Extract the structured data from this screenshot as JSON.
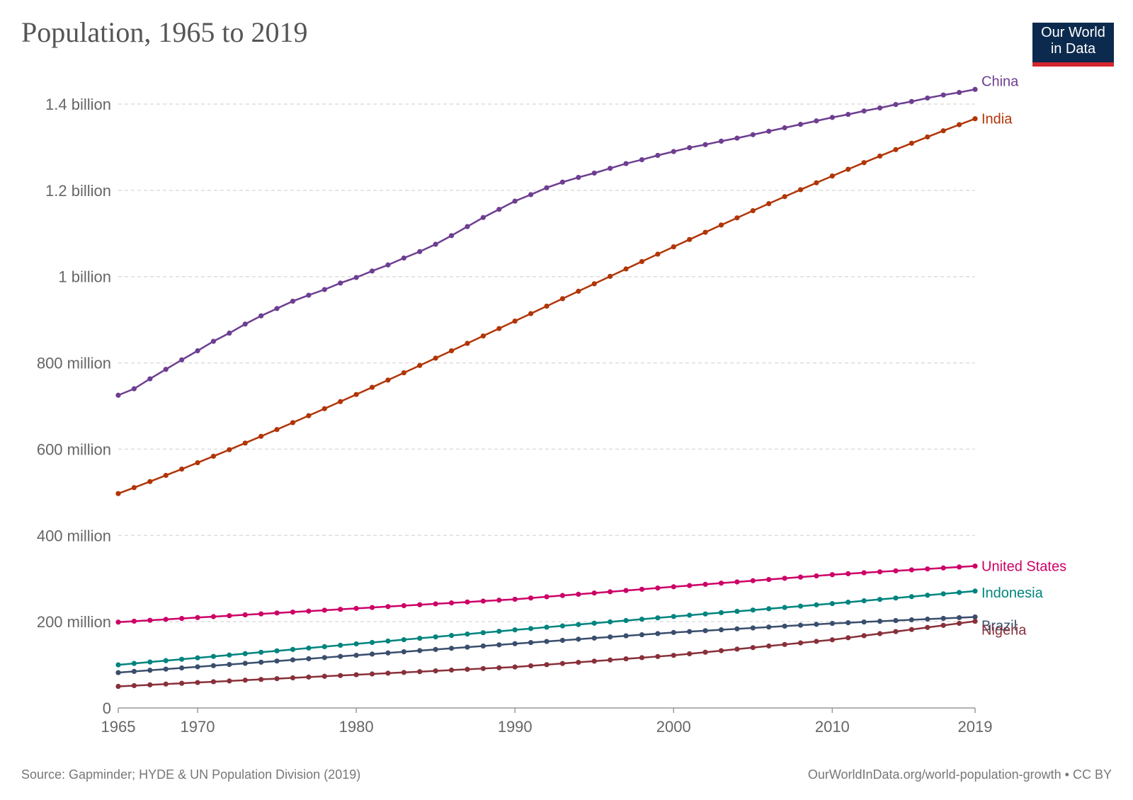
{
  "header": {
    "title": "Population, 1965 to 2019",
    "logo_line1": "Our World",
    "logo_line2": "in Data"
  },
  "footer": {
    "source": "Source: Gapminder; HYDE & UN Population Division (2019)",
    "credit": "OurWorldInData.org/world-population-growth • CC BY"
  },
  "colors": {
    "China": "#6d3e91",
    "India": "#b13507",
    "United States": "#cc0066",
    "Indonesia": "#00847e",
    "Brazil": "#3a4e6c",
    "Nigeria": "#883039",
    "grid": "#dddddd",
    "axis": "#666666"
  },
  "chart_data": {
    "type": "line",
    "title": "Population, 1965 to 2019",
    "xlabel": "",
    "ylabel": "",
    "xlim": [
      1965,
      2019
    ],
    "ylim": [
      0,
      1400000000
    ],
    "x_ticks": [
      {
        "value": 1965,
        "label": "1965"
      },
      {
        "value": 1970,
        "label": "1970"
      },
      {
        "value": 1980,
        "label": "1980"
      },
      {
        "value": 1990,
        "label": "1990"
      },
      {
        "value": 2000,
        "label": "2000"
      },
      {
        "value": 2010,
        "label": "2010"
      },
      {
        "value": 2019,
        "label": "2019"
      }
    ],
    "y_ticks": [
      {
        "value": 0,
        "label": "0"
      },
      {
        "value": 200000000,
        "label": "200 million"
      },
      {
        "value": 400000000,
        "label": "400 million"
      },
      {
        "value": 600000000,
        "label": "600 million"
      },
      {
        "value": 800000000,
        "label": "800 million"
      },
      {
        "value": 1000000000,
        "label": "1 billion"
      },
      {
        "value": 1200000000,
        "label": "1.2 billion"
      },
      {
        "value": 1400000000,
        "label": "1.4 billion"
      }
    ],
    "grid": true,
    "legend": "line-end labels",
    "anchors": {
      "China": [
        [
          1965,
          725000000
        ],
        [
          1966,
          740000000
        ],
        [
          1967,
          763000000
        ],
        [
          1968,
          785000000
        ],
        [
          1969,
          807000000
        ],
        [
          1970,
          828000000
        ],
        [
          1971,
          850000000
        ],
        [
          1972,
          869000000
        ],
        [
          1973,
          890000000
        ],
        [
          1974,
          909000000
        ],
        [
          1975,
          926000000
        ],
        [
          1976,
          943000000
        ],
        [
          1977,
          957000000
        ],
        [
          1978,
          970000000
        ],
        [
          1979,
          985000000
        ],
        [
          1980,
          998000000
        ],
        [
          1981,
          1013000000
        ],
        [
          1982,
          1027000000
        ],
        [
          1983,
          1043000000
        ],
        [
          1984,
          1058000000
        ],
        [
          1985,
          1075000000
        ],
        [
          1986,
          1095000000
        ],
        [
          1987,
          1116000000
        ],
        [
          1988,
          1137000000
        ],
        [
          1989,
          1156000000
        ],
        [
          1990,
          1175000000
        ],
        [
          1991,
          1190000000
        ],
        [
          1992,
          1206000000
        ],
        [
          1993,
          1219000000
        ],
        [
          1994,
          1230000000
        ],
        [
          1995,
          1240000000
        ],
        [
          1996,
          1251000000
        ],
        [
          1997,
          1262000000
        ],
        [
          1998,
          1271000000
        ],
        [
          1999,
          1281000000
        ],
        [
          2000,
          1290000000
        ],
        [
          2001,
          1299000000
        ],
        [
          2002,
          1306000000
        ],
        [
          2003,
          1314000000
        ],
        [
          2004,
          1321000000
        ],
        [
          2005,
          1329000000
        ],
        [
          2006,
          1337000000
        ],
        [
          2007,
          1345000000
        ],
        [
          2008,
          1353000000
        ],
        [
          2009,
          1361000000
        ],
        [
          2010,
          1369000000
        ],
        [
          2011,
          1376000000
        ],
        [
          2012,
          1384000000
        ],
        [
          2013,
          1391000000
        ],
        [
          2014,
          1399000000
        ],
        [
          2015,
          1406000000
        ],
        [
          2016,
          1414000000
        ],
        [
          2017,
          1421000000
        ],
        [
          2018,
          1427000000
        ],
        [
          2019,
          1434000000
        ]
      ],
      "India": [
        [
          1965,
          497000000
        ],
        [
          2019,
          1366000000
        ]
      ],
      "United States": [
        [
          1965,
          199000000
        ],
        [
          1990,
          252000000
        ],
        [
          2000,
          281000000
        ],
        [
          2010,
          309000000
        ],
        [
          2019,
          329000000
        ]
      ],
      "Indonesia": [
        [
          1965,
          100000000
        ],
        [
          1990,
          181000000
        ],
        [
          2000,
          212000000
        ],
        [
          2010,
          242000000
        ],
        [
          2019,
          271000000
        ]
      ],
      "Brazil": [
        [
          1965,
          82000000
        ],
        [
          1990,
          149000000
        ],
        [
          2000,
          175000000
        ],
        [
          2010,
          196000000
        ],
        [
          2019,
          211000000
        ]
      ],
      "Nigeria": [
        [
          1965,
          50000000
        ],
        [
          1990,
          95000000
        ],
        [
          2000,
          122000000
        ],
        [
          2010,
          158000000
        ],
        [
          2019,
          201000000
        ]
      ]
    },
    "series": [
      {
        "name": "China",
        "label": "China"
      },
      {
        "name": "India",
        "label": "India"
      },
      {
        "name": "United States",
        "label": "United States"
      },
      {
        "name": "Indonesia",
        "label": "Indonesia"
      },
      {
        "name": "Brazil",
        "label": "Brazil"
      },
      {
        "name": "Nigeria",
        "label": "Nigeria"
      }
    ]
  }
}
